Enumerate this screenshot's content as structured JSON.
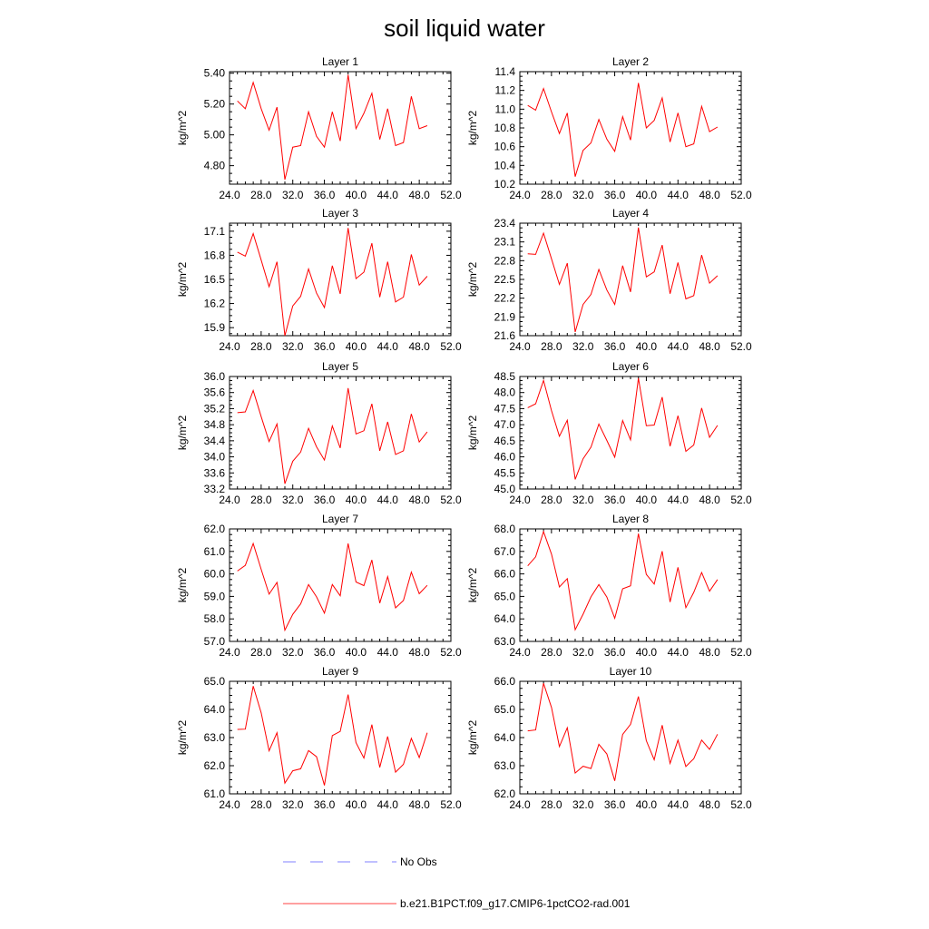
{
  "figure_title": "soil liquid water",
  "legend": {
    "obs_label": "No Obs",
    "model_label": "b.e21.B1PCT.f09_g17.CMIP6-1pctCO2-rad.001",
    "obs_color": "#8080ff",
    "model_color": "#ff0000"
  },
  "chart_data": [
    {
      "type": "line",
      "title": "Layer 1",
      "ylabel": "kg/m^2",
      "xlim": [
        24,
        52
      ],
      "xticks": [
        24,
        28,
        32,
        36,
        40,
        44,
        48,
        52
      ],
      "xtick_labels": [
        "24.0",
        "28.0",
        "32.0",
        "36.0",
        "40.0",
        "44.0",
        "48.0",
        "52.0"
      ],
      "ylim": [
        4.68,
        5.41
      ],
      "yticks": [
        4.8,
        5.0,
        5.2,
        5.4
      ],
      "ytick_labels": [
        "4.80",
        "5.00",
        "5.20",
        "5.40"
      ],
      "series": [
        {
          "color": "#ff0000",
          "x": [
            25,
            26,
            27,
            28,
            29,
            30,
            31,
            32,
            33,
            34,
            35,
            36,
            37,
            38,
            39,
            40,
            41,
            42,
            43,
            44,
            45,
            46,
            47,
            48,
            49
          ],
          "values": [
            5.22,
            5.17,
            5.34,
            5.17,
            5.03,
            5.18,
            4.71,
            4.92,
            4.93,
            5.15,
            4.99,
            4.92,
            5.15,
            4.96,
            5.39,
            5.04,
            5.14,
            5.27,
            4.97,
            5.17,
            4.93,
            4.95,
            5.25,
            5.04,
            5.06
          ]
        }
      ]
    },
    {
      "type": "line",
      "title": "Layer 2",
      "ylabel": "kg/m^2",
      "xlim": [
        24,
        52
      ],
      "xticks": [
        24,
        28,
        32,
        36,
        40,
        44,
        48,
        52
      ],
      "xtick_labels": [
        "24.0",
        "28.0",
        "32.0",
        "36.0",
        "40.0",
        "44.0",
        "48.0",
        "52.0"
      ],
      "ylim": [
        10.2,
        11.4
      ],
      "yticks": [
        10.2,
        10.4,
        10.6,
        10.8,
        11.0,
        11.2,
        11.4
      ],
      "ytick_labels": [
        "10.2",
        "10.4",
        "10.6",
        "10.8",
        "11.0",
        "11.2",
        "11.4"
      ],
      "series": [
        {
          "color": "#ff0000",
          "x": [
            25,
            26,
            27,
            28,
            29,
            30,
            31,
            32,
            33,
            34,
            35,
            36,
            37,
            38,
            39,
            40,
            41,
            42,
            43,
            44,
            45,
            46,
            47,
            48,
            49
          ],
          "values": [
            11.04,
            10.99,
            11.22,
            10.97,
            10.74,
            10.96,
            10.28,
            10.56,
            10.64,
            10.89,
            10.68,
            10.55,
            10.92,
            10.67,
            11.28,
            10.8,
            10.88,
            11.12,
            10.65,
            10.96,
            10.6,
            10.63,
            11.03,
            10.76,
            10.81
          ]
        }
      ]
    },
    {
      "type": "line",
      "title": "Layer 3",
      "ylabel": "kg/m^2",
      "xlim": [
        24,
        52
      ],
      "xticks": [
        24,
        28,
        32,
        36,
        40,
        44,
        48,
        52
      ],
      "xtick_labels": [
        "24.0",
        "28.0",
        "32.0",
        "36.0",
        "40.0",
        "44.0",
        "48.0",
        "52.0"
      ],
      "ylim": [
        15.8,
        17.2
      ],
      "yticks": [
        15.9,
        16.2,
        16.5,
        16.8,
        17.1
      ],
      "ytick_labels": [
        "15.9",
        "16.2",
        "16.5",
        "16.8",
        "17.1"
      ],
      "series": [
        {
          "color": "#ff0000",
          "x": [
            25,
            26,
            27,
            28,
            29,
            30,
            31,
            32,
            33,
            34,
            35,
            36,
            37,
            38,
            39,
            40,
            41,
            42,
            43,
            44,
            45,
            46,
            47,
            48,
            49
          ],
          "values": [
            16.84,
            16.79,
            17.07,
            16.74,
            16.41,
            16.72,
            15.8,
            16.17,
            16.29,
            16.63,
            16.33,
            16.15,
            16.67,
            16.32,
            17.14,
            16.51,
            16.59,
            16.95,
            16.28,
            16.72,
            16.22,
            16.28,
            16.81,
            16.43,
            16.54
          ]
        }
      ]
    },
    {
      "type": "line",
      "title": "Layer 4",
      "ylabel": "kg/m^2",
      "xlim": [
        24,
        52
      ],
      "xticks": [
        24,
        28,
        32,
        36,
        40,
        44,
        48,
        52
      ],
      "xtick_labels": [
        "24.0",
        "28.0",
        "32.0",
        "36.0",
        "40.0",
        "44.0",
        "48.0",
        "52.0"
      ],
      "ylim": [
        21.6,
        23.4
      ],
      "yticks": [
        21.6,
        21.9,
        22.2,
        22.5,
        22.8,
        23.1,
        23.4
      ],
      "ytick_labels": [
        "21.6",
        "21.9",
        "22.2",
        "22.5",
        "22.8",
        "23.1",
        "23.4"
      ],
      "series": [
        {
          "color": "#ff0000",
          "x": [
            25,
            26,
            27,
            28,
            29,
            30,
            31,
            32,
            33,
            34,
            35,
            36,
            37,
            38,
            39,
            40,
            41,
            42,
            43,
            44,
            45,
            46,
            47,
            48,
            49
          ],
          "values": [
            22.91,
            22.9,
            23.24,
            22.83,
            22.42,
            22.76,
            21.66,
            22.1,
            22.26,
            22.66,
            22.33,
            22.1,
            22.72,
            22.3,
            23.33,
            22.54,
            22.62,
            23.05,
            22.27,
            22.77,
            22.19,
            22.24,
            22.89,
            22.44,
            22.56
          ]
        }
      ]
    },
    {
      "type": "line",
      "title": "Layer 5",
      "ylabel": "kg/m^2",
      "xlim": [
        24,
        52
      ],
      "xticks": [
        24,
        28,
        32,
        36,
        40,
        44,
        48,
        52
      ],
      "xtick_labels": [
        "24.0",
        "28.0",
        "32.0",
        "36.0",
        "40.0",
        "44.0",
        "48.0",
        "52.0"
      ],
      "ylim": [
        33.2,
        36.0
      ],
      "yticks": [
        33.2,
        33.6,
        34.0,
        34.4,
        34.8,
        35.2,
        35.6,
        36.0
      ],
      "ytick_labels": [
        "33.2",
        "33.6",
        "34.0",
        "34.4",
        "34.8",
        "35.2",
        "35.6",
        "36.0"
      ],
      "series": [
        {
          "color": "#ff0000",
          "x": [
            25,
            26,
            27,
            28,
            29,
            30,
            31,
            32,
            33,
            34,
            35,
            36,
            37,
            38,
            39,
            40,
            41,
            42,
            43,
            44,
            45,
            46,
            47,
            48,
            49
          ],
          "values": [
            35.1,
            35.12,
            35.65,
            35.0,
            34.38,
            34.82,
            33.33,
            33.89,
            34.12,
            34.71,
            34.25,
            33.92,
            34.77,
            34.22,
            35.71,
            34.57,
            34.65,
            35.32,
            34.15,
            34.87,
            34.06,
            34.15,
            35.07,
            34.37,
            34.62
          ]
        }
      ]
    },
    {
      "type": "line",
      "title": "Layer 6",
      "ylabel": "kg/m^2",
      "xlim": [
        24,
        52
      ],
      "xticks": [
        24,
        28,
        32,
        36,
        40,
        44,
        48,
        52
      ],
      "xtick_labels": [
        "24.0",
        "28.0",
        "32.0",
        "36.0",
        "40.0",
        "44.0",
        "48.0",
        "52.0"
      ],
      "ylim": [
        45.0,
        48.5
      ],
      "yticks": [
        45.0,
        45.5,
        46.0,
        46.5,
        47.0,
        47.5,
        48.0,
        48.5
      ],
      "ytick_labels": [
        "45.0",
        "45.5",
        "46.0",
        "46.5",
        "47.0",
        "47.5",
        "48.0",
        "48.5"
      ],
      "series": [
        {
          "color": "#ff0000",
          "x": [
            25,
            26,
            27,
            28,
            29,
            30,
            31,
            32,
            33,
            34,
            35,
            36,
            37,
            38,
            39,
            40,
            41,
            42,
            43,
            44,
            45,
            46,
            47,
            48,
            49
          ],
          "values": [
            47.53,
            47.65,
            48.38,
            47.44,
            46.64,
            47.14,
            45.3,
            45.94,
            46.3,
            47.02,
            46.51,
            45.99,
            47.13,
            46.53,
            48.45,
            46.97,
            46.99,
            47.86,
            46.33,
            47.28,
            46.17,
            46.37,
            47.52,
            46.61,
            46.98
          ]
        }
      ]
    },
    {
      "type": "line",
      "title": "Layer 7",
      "ylabel": "kg/m^2",
      "xlim": [
        24,
        52
      ],
      "xticks": [
        24,
        28,
        32,
        36,
        40,
        44,
        48,
        52
      ],
      "xtick_labels": [
        "24.0",
        "28.0",
        "32.0",
        "36.0",
        "40.0",
        "44.0",
        "48.0",
        "52.0"
      ],
      "ylim": [
        57.0,
        62.0
      ],
      "yticks": [
        57.0,
        58.0,
        59.0,
        60.0,
        61.0,
        62.0
      ],
      "ytick_labels": [
        "57.0",
        "58.0",
        "59.0",
        "60.0",
        "61.0",
        "62.0"
      ],
      "series": [
        {
          "color": "#ff0000",
          "x": [
            25,
            26,
            27,
            28,
            29,
            30,
            31,
            32,
            33,
            34,
            35,
            36,
            37,
            38,
            39,
            40,
            41,
            42,
            43,
            44,
            45,
            46,
            47,
            48,
            49
          ],
          "values": [
            60.13,
            60.38,
            61.35,
            60.2,
            59.1,
            59.62,
            57.5,
            58.2,
            58.67,
            59.53,
            58.98,
            58.26,
            59.53,
            59.03,
            61.35,
            59.64,
            59.48,
            60.62,
            58.7,
            59.88,
            58.49,
            58.82,
            60.08,
            59.12,
            59.49
          ]
        }
      ]
    },
    {
      "type": "line",
      "title": "Layer 8",
      "ylabel": "kg/m^2",
      "xlim": [
        24,
        52
      ],
      "xticks": [
        24,
        28,
        32,
        36,
        40,
        44,
        48,
        52
      ],
      "xtick_labels": [
        "24.0",
        "28.0",
        "32.0",
        "36.0",
        "40.0",
        "44.0",
        "48.0",
        "52.0"
      ],
      "ylim": [
        63.0,
        68.0
      ],
      "yticks": [
        63.0,
        64.0,
        65.0,
        66.0,
        67.0,
        68.0
      ],
      "ytick_labels": [
        "63.0",
        "64.0",
        "65.0",
        "66.0",
        "67.0",
        "68.0"
      ],
      "series": [
        {
          "color": "#ff0000",
          "x": [
            25,
            26,
            27,
            28,
            29,
            30,
            31,
            32,
            33,
            34,
            35,
            36,
            37,
            38,
            39,
            40,
            41,
            42,
            43,
            44,
            45,
            46,
            47,
            48,
            49
          ],
          "values": [
            66.36,
            66.76,
            67.88,
            66.88,
            65.42,
            65.79,
            63.52,
            64.21,
            64.98,
            65.53,
            64.97,
            64.03,
            65.34,
            65.47,
            67.79,
            65.98,
            65.55,
            67.01,
            64.75,
            66.29,
            64.5,
            65.18,
            66.06,
            65.23,
            65.75
          ]
        }
      ]
    },
    {
      "type": "line",
      "title": "Layer 9",
      "ylabel": "kg/m^2",
      "xlim": [
        24,
        52
      ],
      "xticks": [
        24,
        28,
        32,
        36,
        40,
        44,
        48,
        52
      ],
      "xtick_labels": [
        "24.0",
        "28.0",
        "32.0",
        "36.0",
        "40.0",
        "44.0",
        "48.0",
        "52.0"
      ],
      "ylim": [
        61.0,
        65.0
      ],
      "yticks": [
        61.0,
        62.0,
        63.0,
        64.0,
        65.0
      ],
      "ytick_labels": [
        "61.0",
        "62.0",
        "63.0",
        "64.0",
        "65.0"
      ],
      "series": [
        {
          "color": "#ff0000",
          "x": [
            25,
            26,
            27,
            28,
            29,
            30,
            31,
            32,
            33,
            34,
            35,
            36,
            37,
            38,
            39,
            40,
            41,
            42,
            43,
            44,
            45,
            46,
            47,
            48,
            49
          ],
          "values": [
            63.29,
            63.3,
            64.83,
            63.88,
            62.53,
            63.17,
            61.38,
            61.82,
            61.89,
            62.54,
            62.32,
            61.3,
            63.07,
            63.22,
            64.53,
            62.82,
            62.27,
            63.46,
            61.94,
            63.04,
            61.77,
            62.05,
            62.97,
            62.29,
            63.17
          ]
        }
      ]
    },
    {
      "type": "line",
      "title": "Layer 10",
      "ylabel": "kg/m^2",
      "xlim": [
        24,
        52
      ],
      "xticks": [
        24,
        28,
        32,
        36,
        40,
        44,
        48,
        52
      ],
      "xtick_labels": [
        "24.0",
        "28.0",
        "32.0",
        "36.0",
        "40.0",
        "44.0",
        "48.0",
        "52.0"
      ],
      "ylim": [
        62.0,
        66.0
      ],
      "yticks": [
        62.0,
        63.0,
        64.0,
        65.0,
        66.0
      ],
      "ytick_labels": [
        "62.0",
        "63.0",
        "64.0",
        "65.0",
        "66.0"
      ],
      "series": [
        {
          "color": "#ff0000",
          "x": [
            25,
            26,
            27,
            28,
            29,
            30,
            31,
            32,
            33,
            34,
            35,
            36,
            37,
            38,
            39,
            40,
            41,
            42,
            43,
            44,
            45,
            46,
            47,
            48,
            49
          ],
          "values": [
            64.24,
            64.27,
            65.93,
            65.07,
            63.68,
            64.35,
            62.74,
            62.98,
            62.9,
            63.76,
            63.42,
            62.46,
            64.11,
            64.47,
            65.46,
            63.89,
            63.21,
            64.44,
            63.08,
            63.91,
            62.97,
            63.25,
            63.91,
            63.58,
            64.12
          ]
        }
      ]
    }
  ]
}
